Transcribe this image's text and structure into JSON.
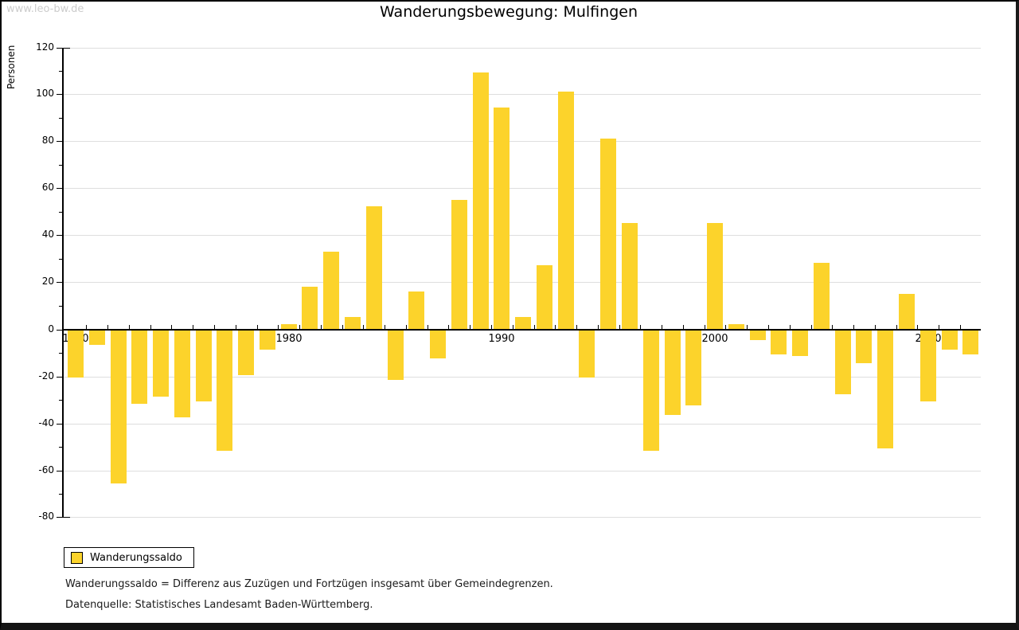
{
  "watermark": "www.leo-bw.de",
  "title": "Wanderungsbewegung: Mulfingen",
  "y_axis_label": "Personen",
  "legend": {
    "label": "Wanderungssaldo"
  },
  "footnotes": {
    "definition": "Wanderungssaldo = Differenz aus Zuzügen und Fortzügen insgesamt über Gemeindegrenzen.",
    "source": "Datenquelle: Statistisches Landesamt Baden-Württemberg."
  },
  "colors": {
    "bar": "#FCD32B",
    "grid": "#DEDEDE",
    "axis": "#000000",
    "watermark": "#CCCCCC"
  },
  "chart_data": {
    "type": "bar",
    "title": "Wanderungsbewegung: Mulfingen",
    "xlabel": "",
    "ylabel": "Personen",
    "series_name": "Wanderungssaldo",
    "years": [
      1970,
      1971,
      1972,
      1973,
      1974,
      1975,
      1976,
      1977,
      1978,
      1979,
      1980,
      1981,
      1982,
      1983,
      1984,
      1985,
      1986,
      1987,
      1988,
      1989,
      1990,
      1991,
      1992,
      1993,
      1994,
      1995,
      1996,
      1997,
      1998,
      1999,
      2000,
      2001,
      2002,
      2003,
      2004,
      2005,
      2006,
      2007,
      2008,
      2009,
      2010,
      2011,
      2012
    ],
    "values": [
      -20,
      -6,
      -65,
      -31,
      -28,
      -37,
      -30,
      -51,
      -19,
      -8,
      2,
      18,
      33,
      5,
      52,
      -21,
      16,
      -12,
      55,
      109,
      94,
      5,
      27,
      101,
      -20,
      81,
      45,
      -51,
      -36,
      -32,
      45,
      2,
      -4,
      -10,
      -11,
      28,
      -27,
      -14,
      -50,
      15,
      -30,
      -8,
      -10
    ],
    "ylim": [
      -80,
      120
    ],
    "ytick_step": 20,
    "ytick_minor_step": 10,
    "xtick_labels": [
      "1970",
      "1980",
      "1990",
      "2000",
      "2010"
    ],
    "grid": true,
    "legend_position": "bottom-left",
    "bar_color": "#FCD32B"
  }
}
